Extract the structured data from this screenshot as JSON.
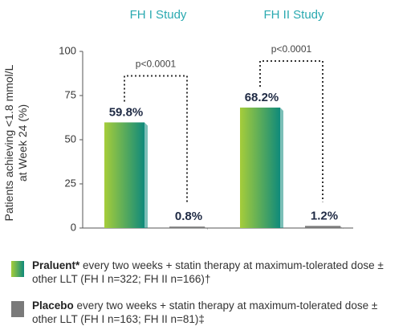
{
  "chart_data": {
    "type": "bar",
    "categories": [
      "FH I Study",
      "FH II Study"
    ],
    "ylabel": [
      "Patients achieving <1.8 mmol/L",
      "at Week 24 (%)"
    ],
    "ylim": [
      0,
      100
    ],
    "yticks": [
      0,
      25,
      50,
      75,
      100
    ],
    "series": [
      {
        "name": "Praluent*",
        "description": "every two weeks + statin therapy at maximum-tolerated dose ± other LLT (FH I n=322; FH II n=166)†",
        "color": [
          "#a6cd3a",
          "#0f8a7b"
        ],
        "values": [
          59.8,
          68.2
        ],
        "value_labels": [
          "59.8%",
          "68.2%"
        ]
      },
      {
        "name": "Placebo",
        "description": "every two weeks + statin therapy at maximum-tolerated dose ± other LLT (FH I n=163; FH II n=81)‡",
        "color": "#7a7a7a",
        "values": [
          0.8,
          1.2
        ],
        "value_labels": [
          "0.8%",
          "1.2%"
        ]
      }
    ],
    "annotations": [
      "p<0.0001",
      "p<0.0001"
    ]
  }
}
